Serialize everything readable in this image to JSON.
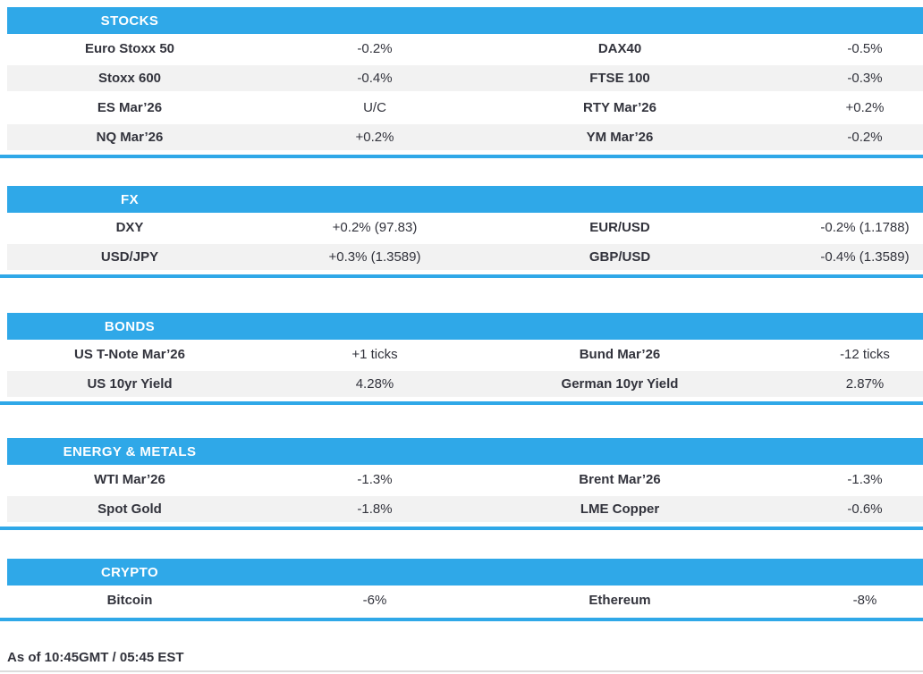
{
  "theme": {
    "accent_blue": "#2FA8E8",
    "row_alt_gray": "#F2F2F2",
    "text_color": "#32333C"
  },
  "sections": [
    {
      "title": "STOCKS",
      "rows": [
        {
          "label_left": "Euro Stoxx 50",
          "value_left": "-0.2%",
          "label_right": "DAX40",
          "value_right": "-0.5%"
        },
        {
          "label_left": "Stoxx 600",
          "value_left": "-0.4%",
          "label_right": "FTSE 100",
          "value_right": "-0.3%"
        },
        {
          "label_left": "ES Mar’26",
          "value_left": "U/C",
          "label_right": "RTY Mar’26",
          "value_right": "+0.2%"
        },
        {
          "label_left": "NQ Mar’26",
          "value_left": "+0.2%",
          "label_right": "YM Mar’26",
          "value_right": "-0.2%"
        }
      ]
    },
    {
      "title": "FX",
      "rows": [
        {
          "label_left": "DXY",
          "value_left": "+0.2% (97.83)",
          "label_right": "EUR/USD",
          "value_right": "-0.2% (1.1788)"
        },
        {
          "label_left": "USD/JPY",
          "value_left": "+0.3% (1.3589)",
          "label_right": "GBP/USD",
          "value_right": "-0.4% (1.3589)"
        }
      ]
    },
    {
      "title": "BONDS",
      "rows": [
        {
          "label_left": "US T-Note Mar’26",
          "value_left": "+1 ticks",
          "label_right": "Bund Mar’26",
          "value_right": "-12 ticks"
        },
        {
          "label_left": "US 10yr Yield",
          "value_left": "4.28%",
          "label_right": "German 10yr Yield",
          "value_right": "2.87%"
        }
      ]
    },
    {
      "title": "ENERGY & METALS",
      "rows": [
        {
          "label_left": "WTI Mar’26",
          "value_left": "-1.3%",
          "label_right": "Brent Mar’26",
          "value_right": "-1.3%"
        },
        {
          "label_left": "Spot Gold",
          "value_left": "-1.8%",
          "label_right": "LME Copper",
          "value_right": "-0.6%"
        }
      ]
    },
    {
      "title": "CRYPTO",
      "rows": [
        {
          "label_left": "Bitcoin",
          "value_left": "-6%",
          "label_right": "Ethereum",
          "value_right": "-8%"
        }
      ]
    }
  ],
  "footer": {
    "as_of": "As of 10:45GMT / 05:45 EST"
  }
}
